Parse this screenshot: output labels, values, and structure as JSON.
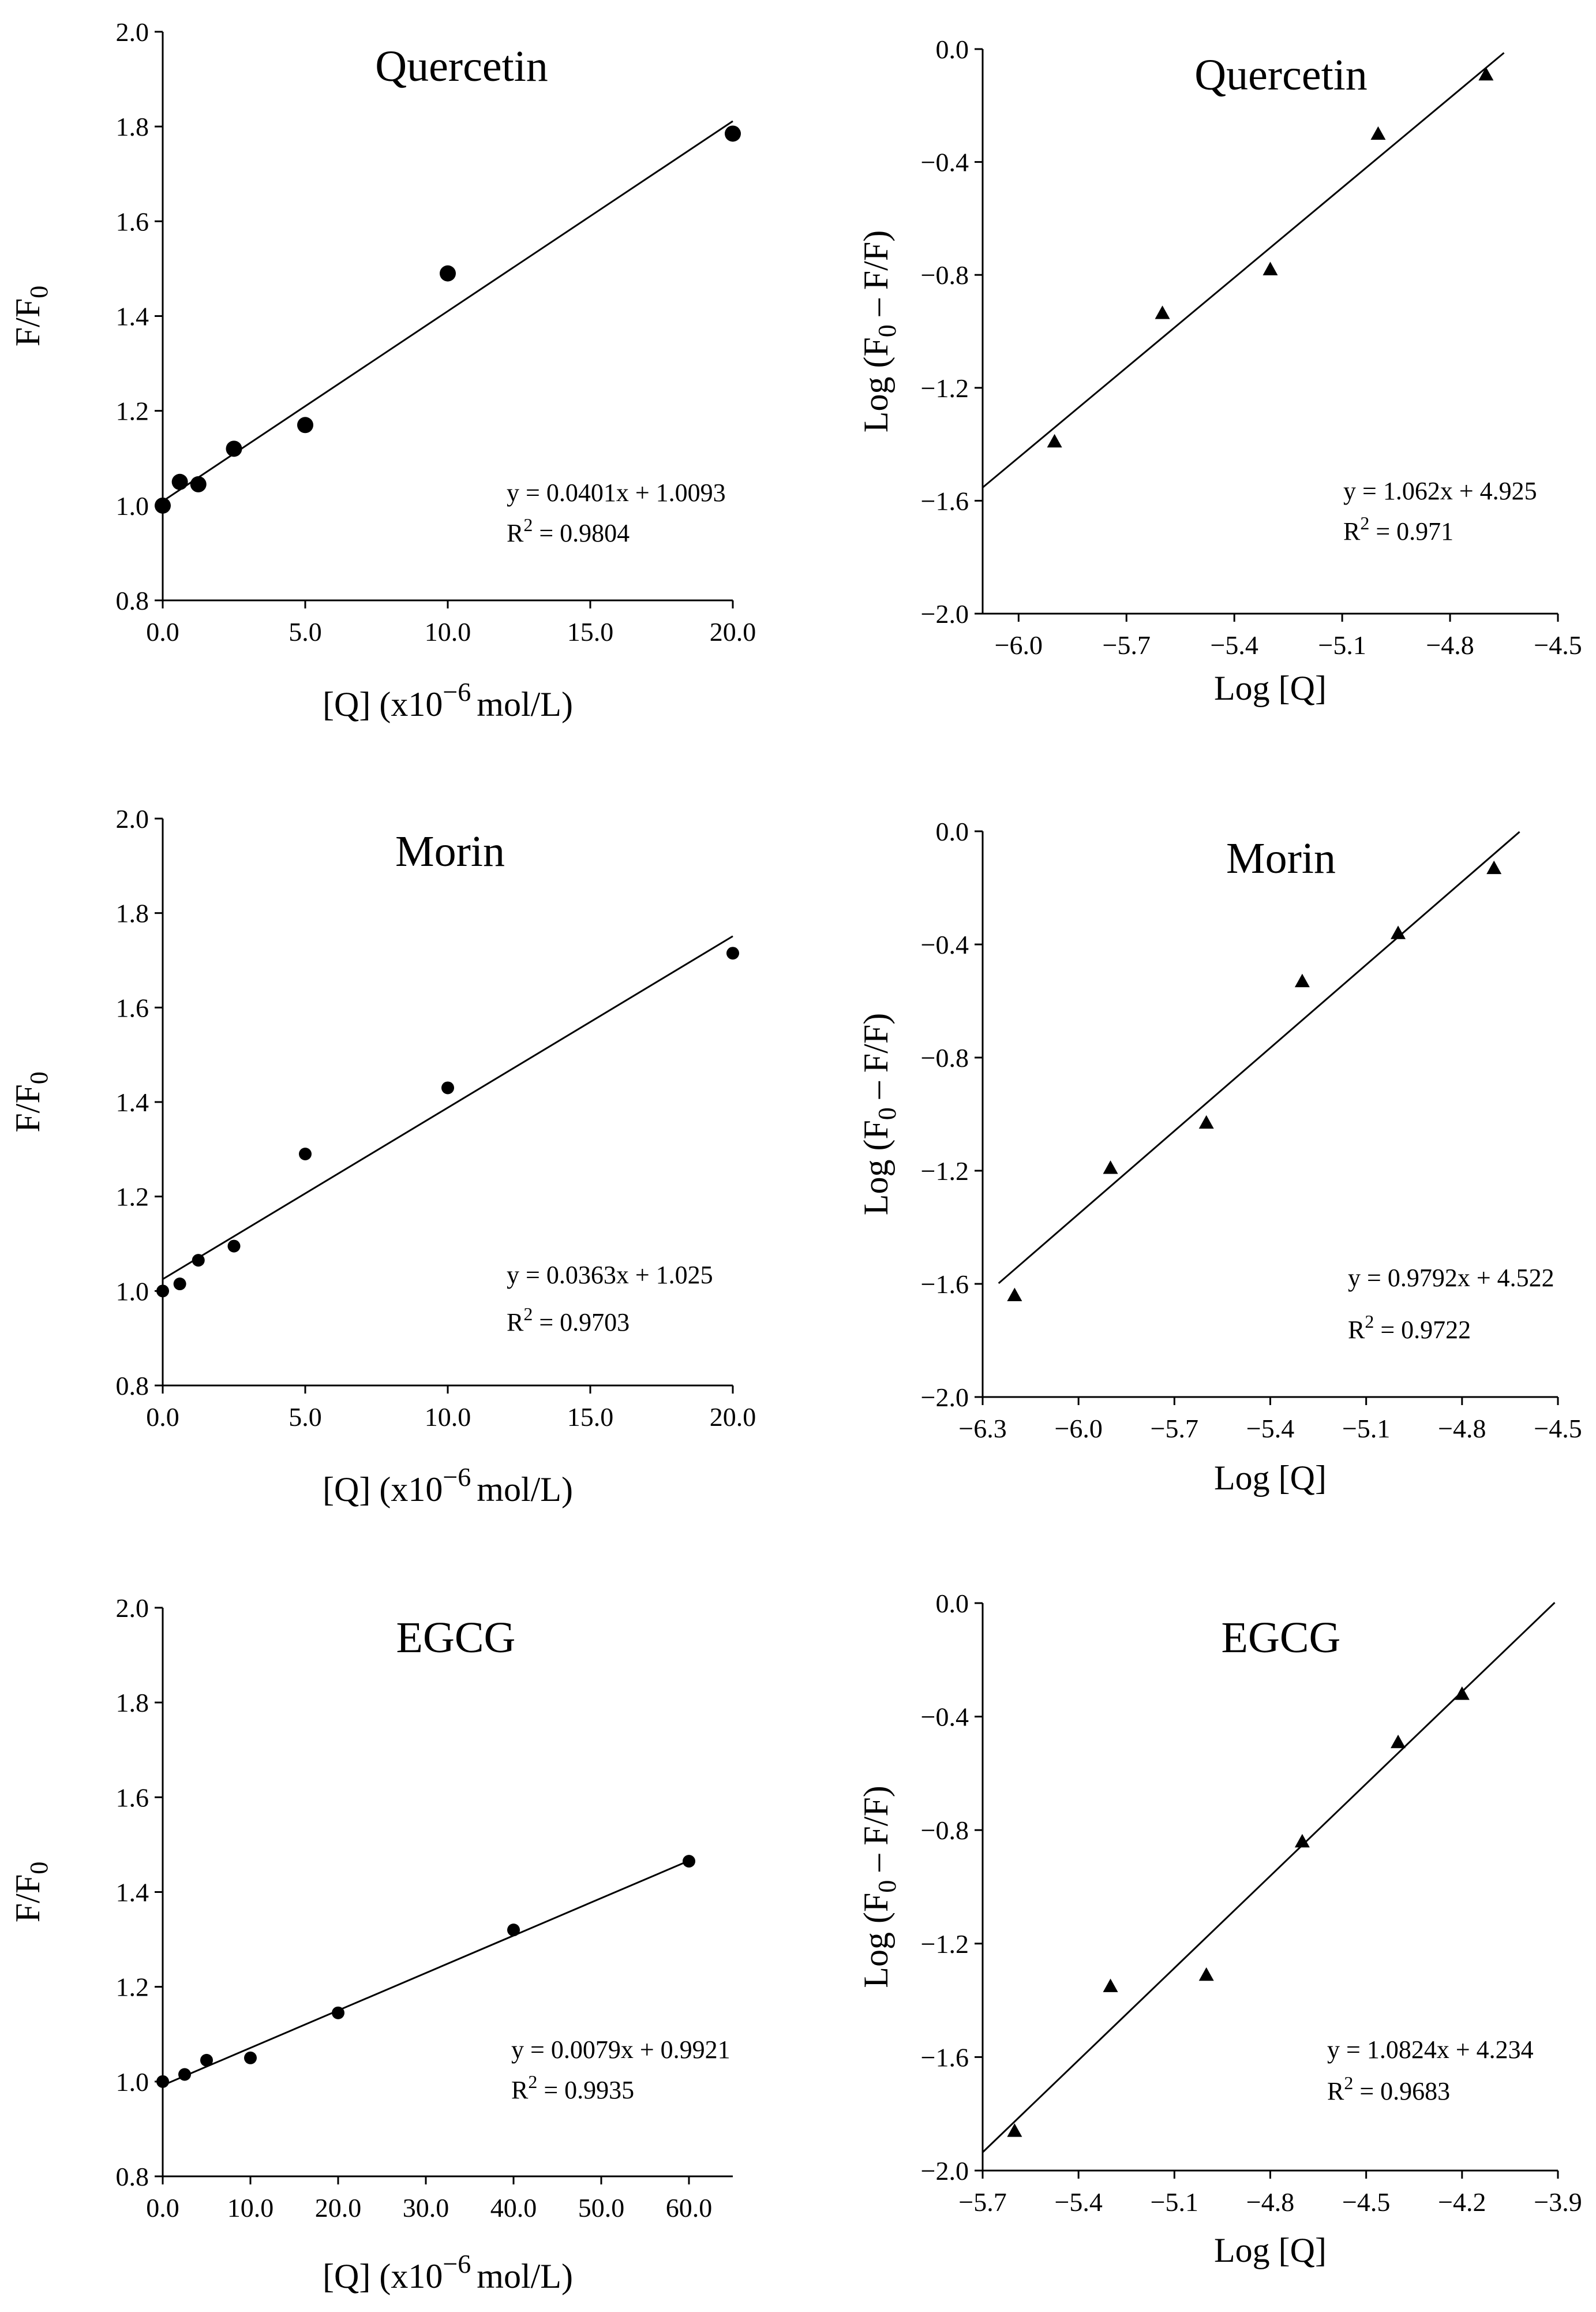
{
  "chart_data": [
    {
      "type": "scatter",
      "title": "Quercetin",
      "xlabel_main": "[Q] (x10",
      "xlabel_exp": "−6",
      "xlabel_unit": "mol/L)",
      "ylabel_main": "F/F",
      "ylabel_sub": "0",
      "xlim": [
        0,
        20
      ],
      "ylim": [
        0.8,
        2.0
      ],
      "xticks": [
        "0.0",
        "5.0",
        "10.0",
        "15.0",
        "20.0"
      ],
      "yticks": [
        "0.8",
        "1.0",
        "1.2",
        "1.4",
        "1.6",
        "1.8",
        "2.0"
      ],
      "marker": "circle",
      "x": [
        0,
        0.6,
        1.25,
        2.5,
        5,
        10,
        20
      ],
      "y": [
        1.0,
        1.05,
        1.045,
        1.12,
        1.17,
        1.49,
        1.785
      ],
      "fit": {
        "slope": 0.0401,
        "intercept": 1.0093,
        "x0": 0,
        "x1": 20
      },
      "equation": "y = 0.0401x + 1.0093",
      "r2_prefix": "R",
      "r2_exp": "2",
      "r2_value": " = 0.9804"
    },
    {
      "type": "scatter",
      "title": "Quercetin",
      "xlabel_main": "Log [Q]",
      "ylabel_main": "Log (F",
      "ylabel_sub": "0",
      "ylabel_rest": " – F/F)",
      "xlim": [
        -6.1,
        -4.5
      ],
      "ylim": [
        -2.0,
        0.0
      ],
      "xticks": [
        "−6.0",
        "−5.7",
        "−5.4",
        "−5.1",
        "−4.8",
        "−4.5"
      ],
      "xtick_values": [
        -6.0,
        -5.7,
        -5.4,
        -5.1,
        -4.8,
        -4.5
      ],
      "yticks": [
        "−2.0",
        "−1.6",
        "−1.2",
        "−0.8",
        "−0.4",
        "0.0"
      ],
      "ytick_values": [
        -2.0,
        -1.6,
        -1.2,
        -0.8,
        -0.4,
        0.0
      ],
      "marker": "triangle",
      "x": [
        -5.9,
        -5.6,
        -5.3,
        -5.0,
        -4.7
      ],
      "y": [
        -1.39,
        -0.935,
        -0.78,
        -0.3,
        -0.09
      ],
      "fit": {
        "slope": 1.062,
        "intercept": 4.925,
        "x0": -6.1,
        "x1": -4.65
      },
      "equation": "y = 1.062x + 4.925",
      "r2_prefix": "R",
      "r2_exp": "2",
      "r2_value": " = 0.971"
    },
    {
      "type": "scatter",
      "title": "Morin",
      "xlabel_main": "[Q] (x10",
      "xlabel_exp": "−6",
      "xlabel_unit": "mol/L)",
      "ylabel_main": "F/F",
      "ylabel_sub": "0",
      "xlim": [
        0,
        20
      ],
      "ylim": [
        0.8,
        2.0
      ],
      "xticks": [
        "0.0",
        "5.0",
        "10.0",
        "15.0",
        "20.0"
      ],
      "yticks": [
        "0.8",
        "1.0",
        "1.2",
        "1.4",
        "1.6",
        "1.8",
        "2.0"
      ],
      "marker": "circle",
      "x": [
        0,
        0.6,
        1.25,
        2.5,
        5,
        10,
        20
      ],
      "y": [
        1.0,
        1.015,
        1.065,
        1.095,
        1.29,
        1.43,
        1.715
      ],
      "fit": {
        "slope": 0.0363,
        "intercept": 1.025,
        "x0": 0,
        "x1": 20
      },
      "equation": "y = 0.0363x + 1.025",
      "r2_prefix": "R",
      "r2_exp": "2",
      "r2_value": " = 0.9703"
    },
    {
      "type": "scatter",
      "title": "Morin",
      "xlabel_main": "Log [Q]",
      "ylabel_main": "Log (F",
      "ylabel_sub": "0",
      "ylabel_rest": " – F/F)",
      "xlim": [
        -6.3,
        -4.5
      ],
      "ylim": [
        -2.0,
        0.0
      ],
      "xticks": [
        "−6.3",
        "−6.0",
        "−5.7",
        "−5.4",
        "−5.1",
        "−4.8",
        "−4.5"
      ],
      "xtick_values": [
        -6.3,
        -6.0,
        -5.7,
        -5.4,
        -5.1,
        -4.8,
        -4.5
      ],
      "yticks": [
        "−2.0",
        "−1.6",
        "−1.2",
        "−0.8",
        "−0.4",
        "0.0"
      ],
      "ytick_values": [
        -2.0,
        -1.6,
        -1.2,
        -0.8,
        -0.4,
        0.0
      ],
      "marker": "triangle",
      "x": [
        -6.2,
        -5.9,
        -5.6,
        -5.3,
        -5.0,
        -4.7
      ],
      "y": [
        -1.64,
        -1.19,
        -1.03,
        -0.53,
        -0.36,
        -0.13
      ],
      "fit": {
        "slope": 0.9792,
        "intercept": 4.522,
        "x0": -6.25,
        "x1": -4.62
      },
      "equation": "y = 0.9792x + 4.522",
      "r2_prefix": "R",
      "r2_exp": "2",
      "r2_value": " = 0.9722"
    },
    {
      "type": "scatter",
      "title": "EGCG",
      "xlabel_main": "[Q] (x10",
      "xlabel_exp": "−6",
      "xlabel_unit": "mol/L)",
      "ylabel_main": "F/F",
      "ylabel_sub": "0",
      "xlim": [
        0,
        65
      ],
      "ylim": [
        0.8,
        2.0
      ],
      "xticks": [
        "0.0",
        "10.0",
        "20.0",
        "30.0",
        "40.0",
        "50.0",
        "60.0"
      ],
      "xtick_values": [
        0,
        10,
        20,
        30,
        40,
        50,
        60
      ],
      "yticks": [
        "0.8",
        "1.0",
        "1.2",
        "1.4",
        "1.6",
        "1.8",
        "2.0"
      ],
      "marker": "circle",
      "x": [
        0,
        2.5,
        5,
        10,
        20,
        40,
        60
      ],
      "y": [
        1.0,
        1.015,
        1.045,
        1.05,
        1.145,
        1.32,
        1.465
      ],
      "fit": {
        "slope": 0.0079,
        "intercept": 0.9921,
        "x0": 0,
        "x1": 60
      },
      "equation": "y = 0.0079x + 0.9921",
      "r2_prefix": "R",
      "r2_exp": "2",
      "r2_value": " = 0.9935"
    },
    {
      "type": "scatter",
      "title": "EGCG",
      "xlabel_main": "Log [Q]",
      "ylabel_main": "Log (F",
      "ylabel_sub": "0",
      "ylabel_rest": " – F/F)",
      "xlim": [
        -5.7,
        -3.9
      ],
      "ylim": [
        -2.0,
        0.0
      ],
      "xticks": [
        "−5.7",
        "−5.4",
        "−5.1",
        "−4.8",
        "−4.5",
        "−4.2",
        "−3.9"
      ],
      "xtick_values": [
        -5.7,
        -5.4,
        -5.1,
        -4.8,
        -4.5,
        -4.2,
        -3.9
      ],
      "yticks": [
        "−2.0",
        "−1.6",
        "−1.2",
        "−0.8",
        "−0.4",
        "0.0"
      ],
      "ytick_values": [
        -2.0,
        -1.6,
        -1.2,
        -0.8,
        -0.4,
        0.0
      ],
      "marker": "triangle",
      "x": [
        -5.6,
        -5.3,
        -5.0,
        -4.7,
        -4.4,
        -4.2
      ],
      "y": [
        -1.86,
        -1.35,
        -1.31,
        -0.84,
        -0.49,
        -0.32
      ],
      "fit": {
        "slope": 1.0824,
        "intercept": 4.234,
        "x0": -5.7,
        "x1": -3.91
      },
      "equation": "y = 1.0824x + 4.234",
      "r2_prefix": "R",
      "r2_exp": "2",
      "r2_value": " = 0.9683"
    }
  ]
}
